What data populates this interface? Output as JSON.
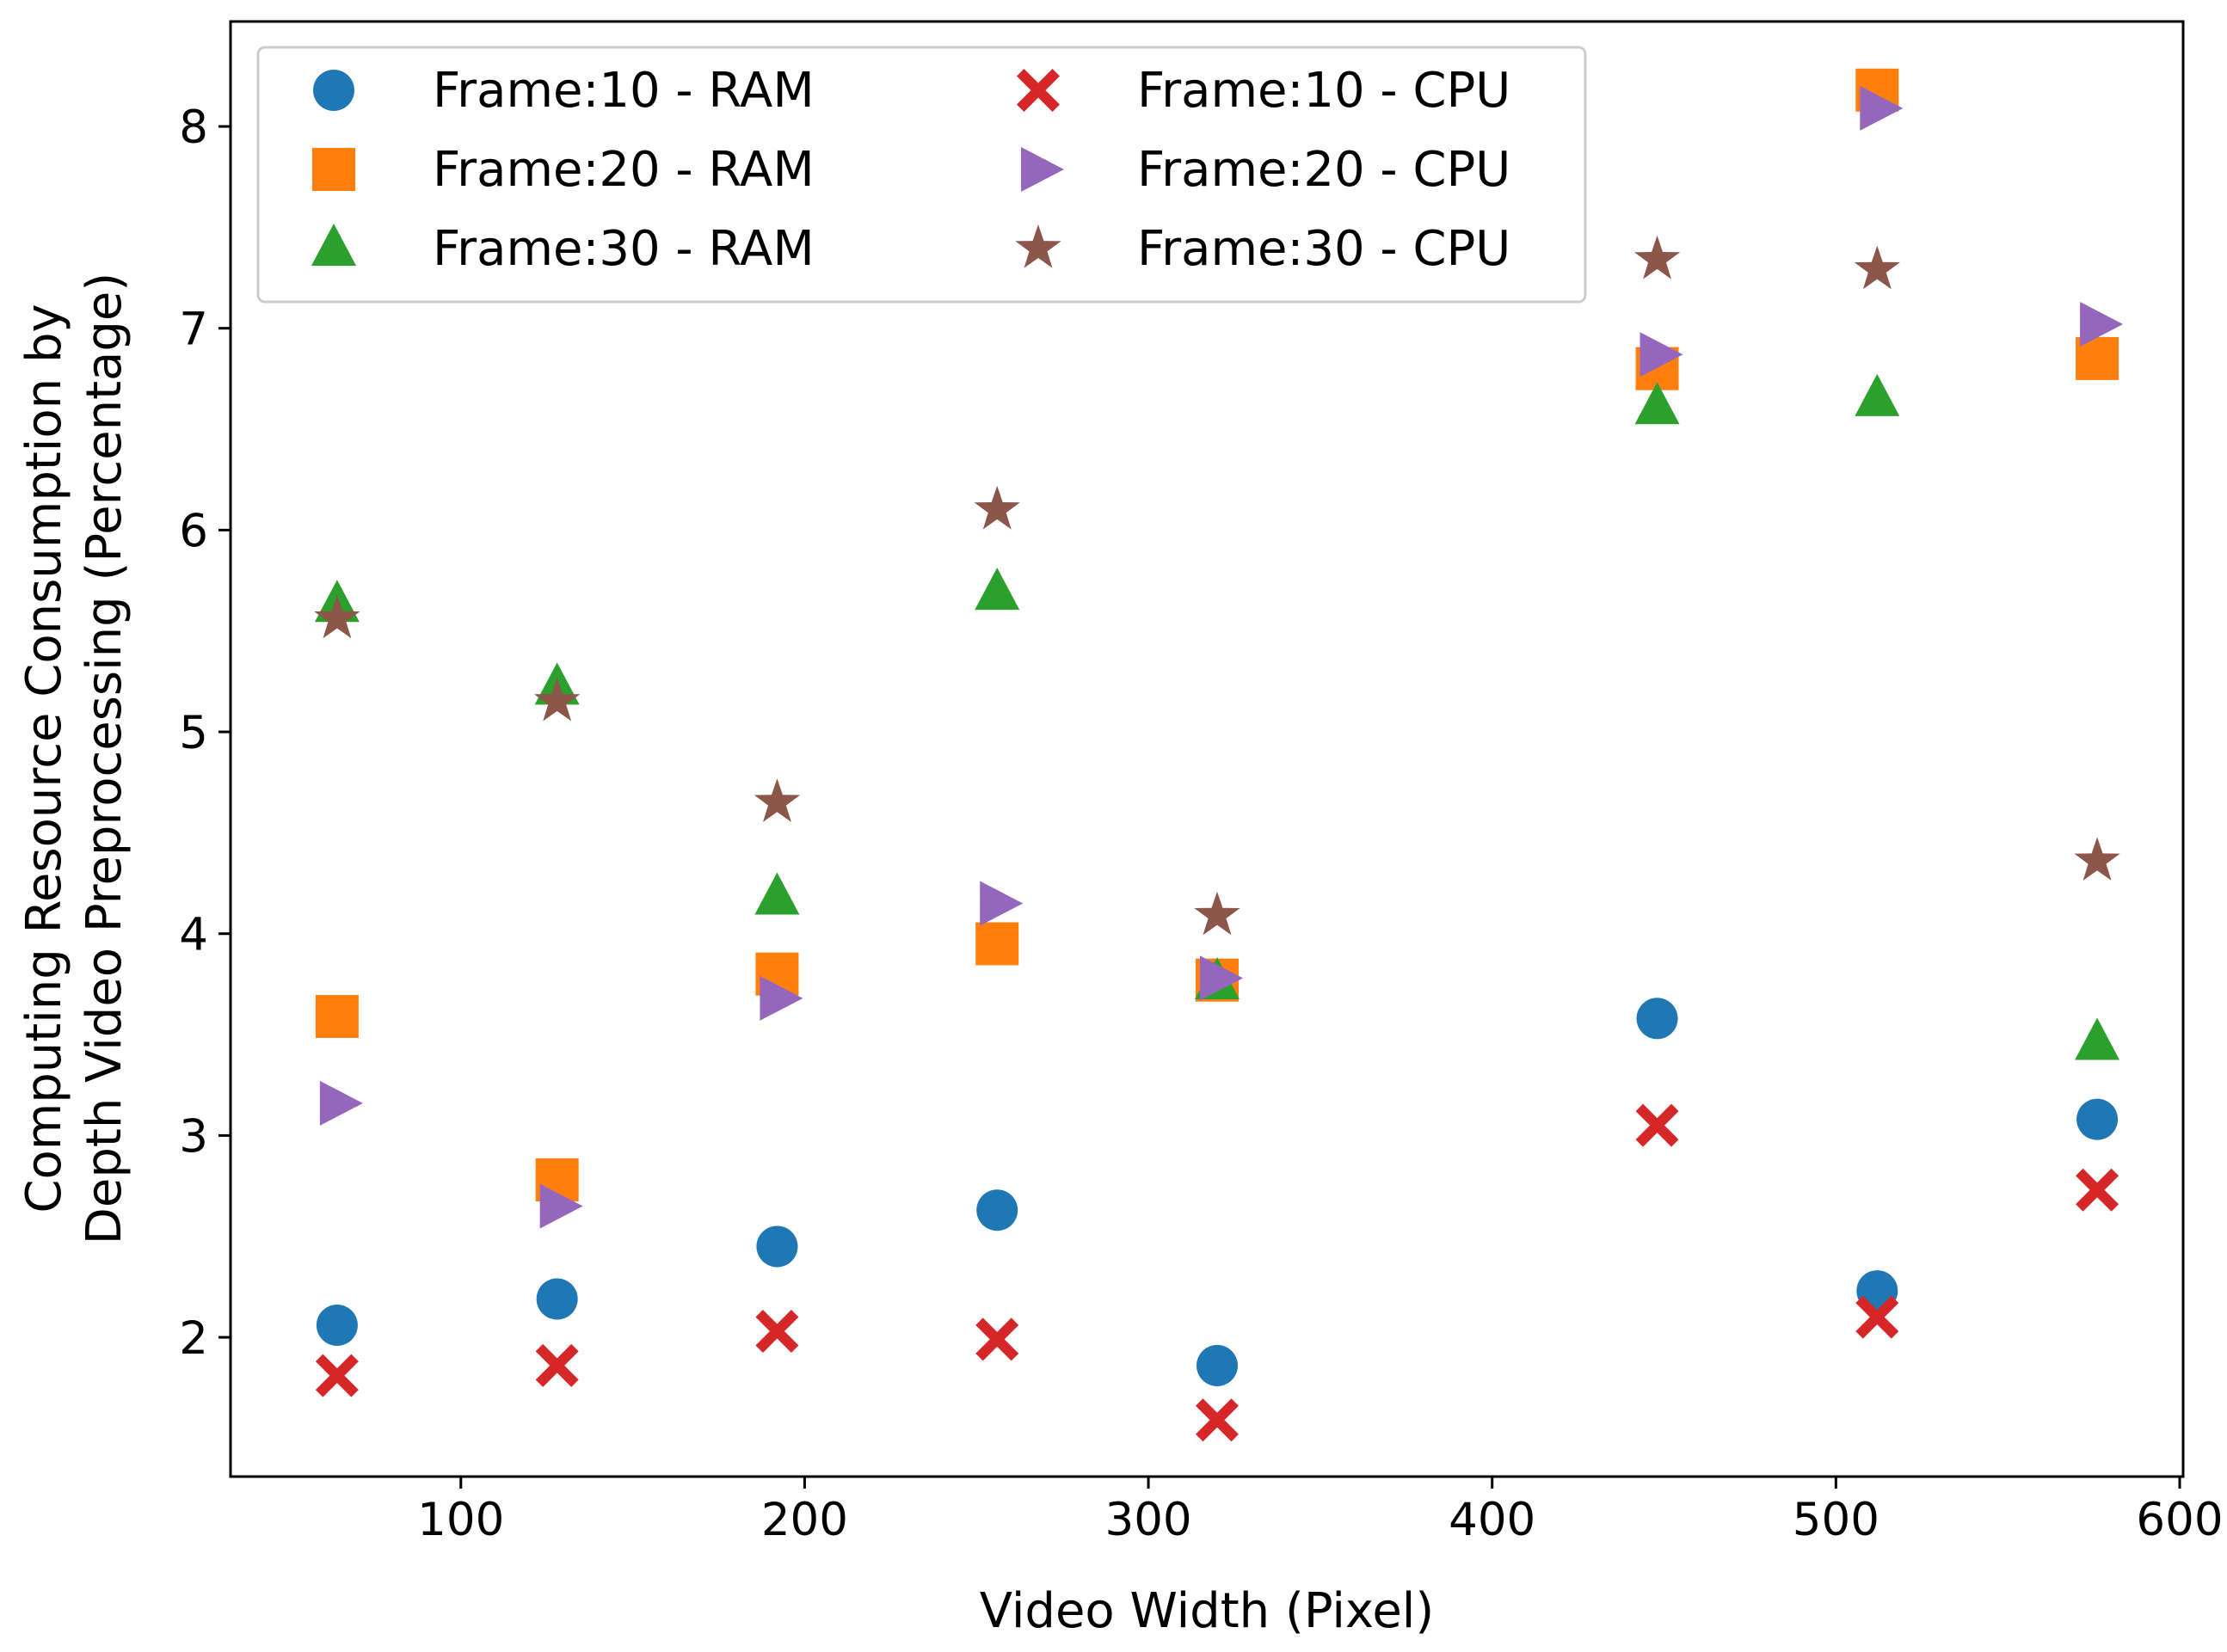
{
  "chart_data": {
    "type": "scatter",
    "title": "",
    "xlabel": "Video Width (Pixel)",
    "ylabel_lines": [
      "Computing Resource Consumption by",
      "Depth Video Preprocessing (Percentage)"
    ],
    "xlim": [
      33,
      601
    ],
    "ylim": [
      1.31,
      8.52
    ],
    "xticks": [
      100,
      200,
      300,
      400,
      500,
      600
    ],
    "yticks": [
      2,
      3,
      4,
      5,
      6,
      7,
      8
    ],
    "legend_position": "top-left",
    "x": [
      64,
      128,
      192,
      256,
      320,
      448,
      512,
      576
    ],
    "series": [
      {
        "name": "Frame:10 - RAM",
        "marker": "circle",
        "color": "#1f77b4",
        "values": [
          2.06,
          2.19,
          2.45,
          2.63,
          1.86,
          3.58,
          2.23,
          3.08
        ]
      },
      {
        "name": "Frame:20 - RAM",
        "marker": "square",
        "color": "#ff7f0e",
        "values": [
          3.59,
          2.78,
          3.8,
          3.95,
          3.77,
          6.8,
          8.18,
          6.85
        ]
      },
      {
        "name": "Frame:30 - RAM",
        "marker": "triangle-up",
        "color": "#2ca02c",
        "values": [
          5.63,
          5.22,
          4.18,
          5.69,
          3.76,
          6.61,
          6.65,
          3.46
        ]
      },
      {
        "name": "Frame:10 - CPU",
        "marker": "x-filled",
        "color": "#d62728",
        "values": [
          1.81,
          1.86,
          2.03,
          1.99,
          1.59,
          3.05,
          2.1,
          2.73
        ]
      },
      {
        "name": "Frame:20 - CPU",
        "marker": "triangle-right",
        "color": "#9467bd",
        "values": [
          3.16,
          2.65,
          3.68,
          4.15,
          3.78,
          6.87,
          8.09,
          7.02
        ]
      },
      {
        "name": "Frame:30 - CPU",
        "marker": "star",
        "color": "#8c564b",
        "values": [
          5.56,
          5.15,
          4.65,
          6.1,
          4.09,
          7.34,
          7.29,
          4.36
        ]
      }
    ]
  }
}
